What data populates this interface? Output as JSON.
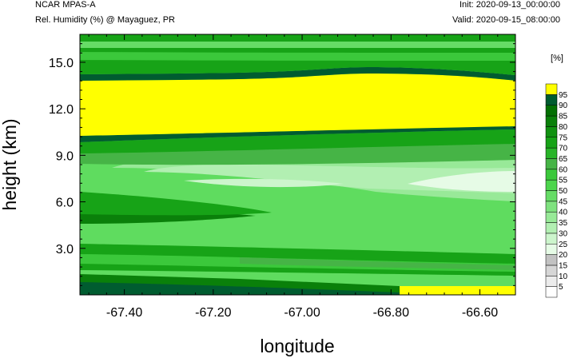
{
  "header": {
    "model": "NCAR MPAS-A",
    "field": "Rel. Humidity (%) @ Mayaguez, PR",
    "init": "Init: 2020-09-13_00:00:00",
    "valid": "Valid: 2020-09-15_08:00:00"
  },
  "colors": {
    "yellow_95": "#ffff00",
    "dark_green_90": "#006b3a",
    "mid_green": "#00a335",
    "light_green": "#5fdc5f",
    "pale_green": "#c4f2c4"
  },
  "chart_data": {
    "type": "heatmap",
    "title": "",
    "xlabel": "longitude",
    "ylabel": "height (km)",
    "xlim": [
      -67.5,
      -66.52
    ],
    "ylim": [
      0.0,
      16.8
    ],
    "x_ticks": [
      -67.4,
      -67.2,
      -67.0,
      -66.8,
      -66.6
    ],
    "x_tick_labels": [
      "-67.40",
      "-67.20",
      "-67.00",
      "-66.80",
      "-66.60"
    ],
    "y_ticks": [
      3.0,
      6.0,
      9.0,
      12.0,
      15.0
    ],
    "y_tick_labels": [
      "3.0",
      "6.0",
      "9.0",
      "12.0",
      "15.0"
    ],
    "colorbar": {
      "unit_label": "[%]",
      "levels": [
        "5",
        "10",
        "15",
        "20",
        "25",
        "30",
        "35",
        "40",
        "45",
        "50",
        "55",
        "60",
        "65",
        "70",
        "75",
        "80",
        "85",
        "90",
        "95"
      ],
      "colors": [
        "#ffffff",
        "#ececec",
        "#d6d6d6",
        "#c2c2c2",
        "#e6fbe6",
        "#ccf5cc",
        "#b2efb2",
        "#98e998",
        "#7fe27f",
        "#66dc66",
        "#4dd54d",
        "#3bc83b",
        "#46b446",
        "#28b428",
        "#17a317",
        "#119211",
        "#0a800a",
        "#037003",
        "#005c30",
        "#ffff00"
      ]
    },
    "bands_description_note": "",
    "profile_heights_km": [
      0.5,
      1.5,
      3.0,
      5.0,
      6.5,
      8.0,
      9.5,
      10.5,
      12.0,
      14.0,
      15.0,
      16.0
    ],
    "relative_humidity_pct": {
      "-67.50": [
        75,
        70,
        78,
        72,
        55,
        52,
        80,
        98,
        98,
        90,
        78,
        72
      ],
      "-67.20": [
        70,
        68,
        76,
        60,
        52,
        45,
        75,
        98,
        98,
        90,
        78,
        72
      ],
      "-67.00": [
        68,
        66,
        72,
        58,
        42,
        40,
        72,
        98,
        98,
        92,
        78,
        72
      ],
      "-66.80": [
        65,
        65,
        70,
        58,
        48,
        45,
        75,
        98,
        98,
        90,
        78,
        72
      ],
      "-66.60": [
        98,
        66,
        72,
        55,
        22,
        40,
        80,
        98,
        98,
        90,
        78,
        72
      ]
    }
  }
}
